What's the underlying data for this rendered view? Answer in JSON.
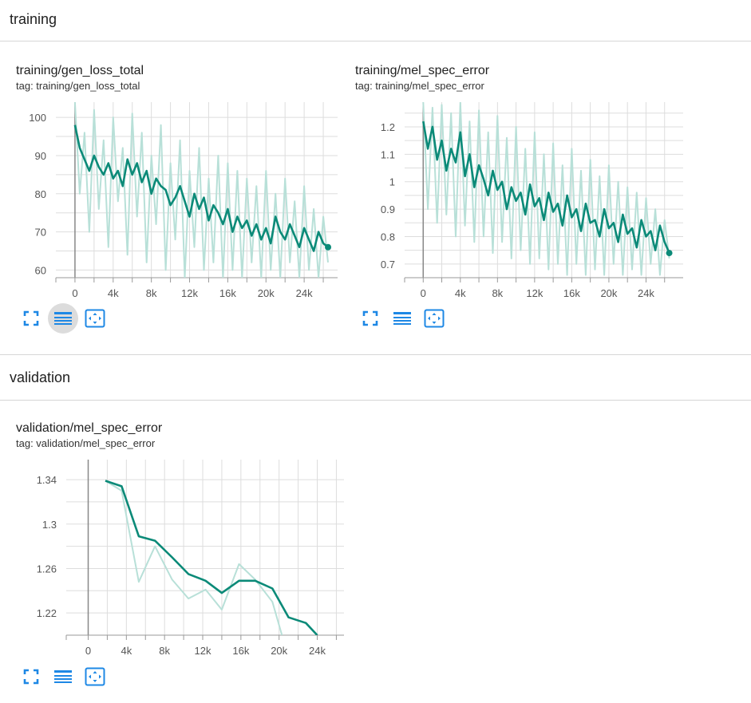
{
  "sections": [
    {
      "title": "training"
    },
    {
      "title": "validation"
    }
  ],
  "colors": {
    "line": "#0b8a78",
    "raw": "#b8e0d8",
    "grid": "#dddddd",
    "icon": "#1e88e5"
  },
  "icons": [
    "fullscreen-icon",
    "toggle-log-scale-icon",
    "fit-domain-icon"
  ],
  "cards": [
    {
      "title": "training/gen_loss_total",
      "tag": "tag: training/gen_loss_total",
      "chart_data": {
        "type": "line",
        "title": "training/gen_loss_total",
        "xlabel": "",
        "ylabel": "",
        "xlim": [
          -2000,
          27500
        ],
        "ylim": [
          58,
          104
        ],
        "xticks": [
          0,
          4000,
          8000,
          12000,
          16000,
          20000,
          24000
        ],
        "xtick_labels": [
          "0",
          "4k",
          "8k",
          "12k",
          "16k",
          "20k",
          "24k"
        ],
        "yticks": [
          60,
          70,
          80,
          90,
          100
        ],
        "ytick_labels": [
          "60",
          "70",
          "80",
          "90",
          "100"
        ],
        "grid": true,
        "series": [
          {
            "role": "smoothed",
            "x": [
              0,
              500,
              1000,
              1500,
              2000,
              2500,
              3000,
              3500,
              4000,
              4500,
              5000,
              5500,
              6000,
              6500,
              7000,
              7500,
              8000,
              8500,
              9000,
              9500,
              10000,
              10500,
              11000,
              11500,
              12000,
              12500,
              13000,
              13500,
              14000,
              14500,
              15000,
              15500,
              16000,
              16500,
              17000,
              17500,
              18000,
              18500,
              19000,
              19500,
              20000,
              20500,
              21000,
              21500,
              22000,
              22500,
              23000,
              23500,
              24000,
              24500,
              25000,
              25500,
              26000,
              26500
            ],
            "y": [
              98,
              92,
              89,
              86,
              90,
              87,
              85,
              88,
              84,
              86,
              82,
              89,
              85,
              88,
              83,
              86,
              80,
              84,
              82,
              81,
              77,
              79,
              82,
              78,
              74,
              80,
              76,
              79,
              73,
              77,
              75,
              72,
              76,
              70,
              74,
              71,
              73,
              69,
              72,
              68,
              71,
              67,
              74,
              70,
              68,
              72,
              69,
              66,
              71,
              68,
              65,
              70,
              67,
              66
            ]
          },
          {
            "role": "raw",
            "x": [
              0,
              500,
              1000,
              1500,
              2000,
              2500,
              3000,
              3500,
              4000,
              4500,
              5000,
              5500,
              6000,
              6500,
              7000,
              7500,
              8000,
              8500,
              9000,
              9500,
              10000,
              10500,
              11000,
              11500,
              12000,
              12500,
              13000,
              13500,
              14000,
              14500,
              15000,
              15500,
              16000,
              16500,
              17000,
              17500,
              18000,
              18500,
              19000,
              19500,
              20000,
              20500,
              21000,
              21500,
              22000,
              22500,
              23000,
              23500,
              24000,
              24500,
              25000,
              25500,
              26000,
              26500
            ],
            "y": [
              104,
              80,
              96,
              70,
              102,
              76,
              94,
              66,
              100,
              78,
              92,
              64,
              101,
              74,
              96,
              62,
              90,
              72,
              98,
              60,
              88,
              68,
              94,
              58,
              86,
              66,
              92,
              60,
              84,
              62,
              90,
              58,
              88,
              60,
              86,
              58,
              84,
              62,
              82,
              58,
              86,
              60,
              80,
              58,
              84,
              62,
              78,
              58,
              82,
              60,
              76,
              58,
              74,
              62
            ]
          }
        ]
      }
    },
    {
      "title": "training/mel_spec_error",
      "tag": "tag: training/mel_spec_error",
      "chart_data": {
        "type": "line",
        "title": "training/mel_spec_error",
        "xlabel": "",
        "ylabel": "",
        "xlim": [
          -2000,
          28000
        ],
        "ylim": [
          0.65,
          1.29
        ],
        "xticks": [
          0,
          4000,
          8000,
          12000,
          16000,
          20000,
          24000
        ],
        "xtick_labels": [
          "0",
          "4k",
          "8k",
          "12k",
          "16k",
          "20k",
          "24k"
        ],
        "yticks": [
          0.7,
          0.8,
          0.9,
          1.0,
          1.1,
          1.2
        ],
        "ytick_labels": [
          "0.7",
          "0.8",
          "0.9",
          "1",
          "1.1",
          "1.2"
        ],
        "grid": true,
        "series": [
          {
            "role": "smoothed",
            "x": [
              0,
              500,
              1000,
              1500,
              2000,
              2500,
              3000,
              3500,
              4000,
              4500,
              5000,
              5500,
              6000,
              6500,
              7000,
              7500,
              8000,
              8500,
              9000,
              9500,
              10000,
              10500,
              11000,
              11500,
              12000,
              12500,
              13000,
              13500,
              14000,
              14500,
              15000,
              15500,
              16000,
              16500,
              17000,
              17500,
              18000,
              18500,
              19000,
              19500,
              20000,
              20500,
              21000,
              21500,
              22000,
              22500,
              23000,
              23500,
              24000,
              24500,
              25000,
              25500,
              26000,
              26500
            ],
            "y": [
              1.22,
              1.12,
              1.2,
              1.08,
              1.15,
              1.04,
              1.12,
              1.07,
              1.18,
              1.02,
              1.1,
              0.98,
              1.06,
              1.01,
              0.95,
              1.04,
              0.97,
              1.0,
              0.9,
              0.98,
              0.93,
              0.96,
              0.88,
              0.99,
              0.91,
              0.94,
              0.86,
              0.96,
              0.89,
              0.92,
              0.84,
              0.95,
              0.87,
              0.9,
              0.82,
              0.92,
              0.85,
              0.86,
              0.8,
              0.9,
              0.83,
              0.85,
              0.78,
              0.88,
              0.81,
              0.83,
              0.76,
              0.86,
              0.8,
              0.82,
              0.75,
              0.84,
              0.78,
              0.74
            ]
          },
          {
            "role": "raw",
            "x": [
              0,
              500,
              1000,
              1500,
              2000,
              2500,
              3000,
              3500,
              4000,
              4500,
              5000,
              5500,
              6000,
              6500,
              7000,
              7500,
              8000,
              8500,
              9000,
              9500,
              10000,
              10500,
              11000,
              11500,
              12000,
              12500,
              13000,
              13500,
              14000,
              14500,
              15000,
              15500,
              16000,
              16500,
              17000,
              17500,
              18000,
              18500,
              19000,
              19500,
              20000,
              20500,
              21000,
              21500,
              22000,
              22500,
              23000,
              23500,
              24000,
              24500,
              25000,
              25500,
              26000,
              26500
            ],
            "y": [
              1.29,
              0.9,
              1.27,
              0.85,
              1.28,
              0.88,
              1.25,
              0.8,
              1.29,
              0.84,
              1.22,
              0.78,
              1.26,
              0.8,
              1.18,
              0.74,
              1.24,
              0.78,
              1.16,
              0.72,
              1.2,
              0.75,
              1.12,
              0.7,
              1.18,
              0.72,
              1.1,
              0.68,
              1.14,
              0.7,
              1.06,
              0.66,
              1.12,
              0.7,
              1.04,
              0.66,
              1.08,
              0.68,
              1.02,
              0.66,
              1.06,
              0.7,
              1.0,
              0.66,
              0.98,
              0.68,
              0.96,
              0.66,
              0.94,
              0.7,
              0.9,
              0.66,
              0.86,
              0.72
            ]
          }
        ]
      }
    },
    {
      "title": "validation/mel_spec_error",
      "tag": "tag: validation/mel_spec_error",
      "chart_data": {
        "type": "line",
        "title": "validation/mel_spec_error",
        "xlabel": "",
        "ylabel": "",
        "xlim": [
          -2300,
          26800
        ],
        "ylim": [
          1.2,
          1.358
        ],
        "xticks": [
          0,
          4000,
          8000,
          12000,
          16000,
          20000,
          24000
        ],
        "xtick_labels": [
          "0",
          "4k",
          "8k",
          "12k",
          "16k",
          "20k",
          "24k"
        ],
        "yticks": [
          1.22,
          1.26,
          1.3,
          1.34
        ],
        "ytick_labels": [
          "1.22",
          "1.26",
          "1.3",
          "1.34"
        ],
        "grid": true,
        "series": [
          {
            "role": "smoothed",
            "x": [
              1800,
              3500,
              5300,
              7000,
              8800,
              10500,
              12300,
              14000,
              15800,
              17500,
              19300,
              21000,
              22800,
              24000
            ],
            "y": [
              1.339,
              1.334,
              1.289,
              1.285,
              1.27,
              1.255,
              1.249,
              1.238,
              1.249,
              1.249,
              1.242,
              1.216,
              1.211,
              1.2
            ]
          },
          {
            "role": "raw",
            "x": [
              1800,
              3500,
              5300,
              7000,
              8800,
              10500,
              12300,
              14000,
              15800,
              17500,
              19300,
              20300
            ],
            "y": [
              1.339,
              1.33,
              1.248,
              1.28,
              1.25,
              1.233,
              1.241,
              1.223,
              1.264,
              1.25,
              1.23,
              1.2
            ]
          }
        ]
      }
    }
  ]
}
